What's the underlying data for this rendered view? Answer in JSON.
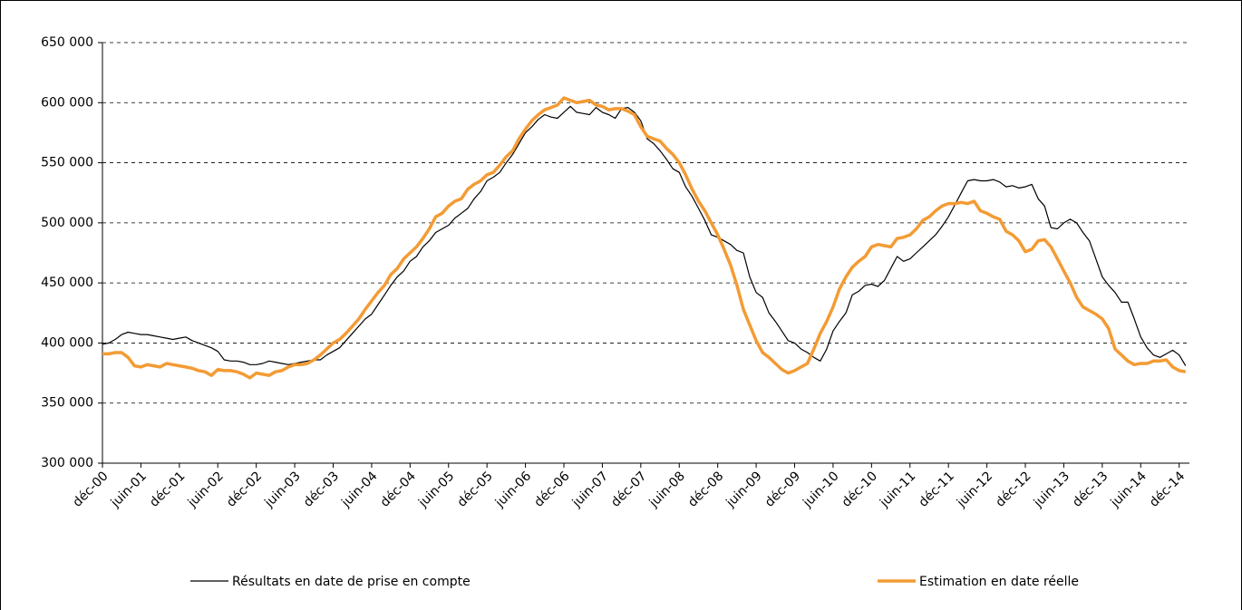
{
  "chart_data": {
    "type": "line",
    "categories": [
      "déc-00",
      null,
      null,
      null,
      null,
      null,
      "juin-01",
      null,
      null,
      null,
      null,
      null,
      "déc-01",
      null,
      null,
      null,
      null,
      null,
      "juin-02",
      null,
      null,
      null,
      null,
      null,
      "déc-02",
      null,
      null,
      null,
      null,
      null,
      "juin-03",
      null,
      null,
      null,
      null,
      null,
      "déc-03",
      null,
      null,
      null,
      null,
      null,
      "juin-04",
      null,
      null,
      null,
      null,
      null,
      "déc-04",
      null,
      null,
      null,
      null,
      null,
      "juin-05",
      null,
      null,
      null,
      null,
      null,
      "déc-05",
      null,
      null,
      null,
      null,
      null,
      "juin-06",
      null,
      null,
      null,
      null,
      null,
      "déc-06",
      null,
      null,
      null,
      null,
      null,
      "juin-07",
      null,
      null,
      null,
      null,
      null,
      "déc-07",
      null,
      null,
      null,
      null,
      null,
      "juin-08",
      null,
      null,
      null,
      null,
      null,
      "déc-08",
      null,
      null,
      null,
      null,
      null,
      "juin-09",
      null,
      null,
      null,
      null,
      null,
      "déc-09",
      null,
      null,
      null,
      null,
      null,
      "juin-10",
      null,
      null,
      null,
      null,
      null,
      "déc-10",
      null,
      null,
      null,
      null,
      null,
      "juin-11",
      null,
      null,
      null,
      null,
      null,
      "déc-11",
      null,
      null,
      null,
      null,
      null,
      "juin-12",
      null,
      null,
      null,
      null,
      null,
      "déc-12",
      null,
      null,
      null,
      null,
      null,
      "juin-13",
      null,
      null,
      null,
      null,
      null,
      "déc-13",
      null,
      null,
      null,
      null,
      null,
      "juin-14",
      null,
      null,
      null,
      null,
      null,
      "déc-14",
      null
    ],
    "series": [
      {
        "name": "Résultats en date de prise en compte",
        "color": "#000000",
        "width": 1.2,
        "values": [
          399000,
          400000,
          403000,
          407000,
          409000,
          408000,
          407000,
          407000,
          406000,
          405000,
          404000,
          403000,
          404000,
          405000,
          402000,
          400000,
          398000,
          396000,
          393000,
          386000,
          385000,
          385000,
          384000,
          382000,
          382000,
          383000,
          385000,
          384000,
          383000,
          382000,
          383000,
          384000,
          385000,
          386000,
          386000,
          390000,
          393000,
          396000,
          402000,
          408000,
          414000,
          420000,
          424000,
          432000,
          440000,
          448000,
          455000,
          460000,
          468000,
          472000,
          480000,
          485000,
          492000,
          495000,
          498000,
          504000,
          508000,
          512000,
          520000,
          526000,
          535000,
          538000,
          542000,
          550000,
          557000,
          566000,
          575000,
          580000,
          586000,
          590000,
          588000,
          587000,
          592000,
          597000,
          592000,
          591000,
          590000,
          596000,
          592000,
          590000,
          587000,
          595000,
          596000,
          592000,
          585000,
          570000,
          566000,
          560000,
          553000,
          545000,
          542000,
          530000,
          522000,
          512000,
          502000,
          490000,
          488000,
          485000,
          482000,
          477000,
          475000,
          455000,
          442000,
          438000,
          425000,
          418000,
          410000,
          402000,
          400000,
          395000,
          392000,
          388000,
          385000,
          395000,
          410000,
          418000,
          425000,
          440000,
          443000,
          448000,
          449000,
          447000,
          452000,
          462000,
          472000,
          468000,
          470000,
          475000,
          480000,
          485000,
          490000,
          497000,
          505000,
          515000,
          525000,
          535000,
          536000,
          535000,
          535000,
          536000,
          534000,
          530000,
          531000,
          529000,
          530000,
          532000,
          520000,
          514000,
          496000,
          495000,
          500000,
          503000,
          500000,
          492000,
          485000,
          470000,
          455000,
          448000,
          442000,
          434000,
          434000,
          420000,
          405000,
          396000,
          390000,
          388000,
          391000,
          394000,
          390000,
          381000
        ]
      },
      {
        "name": "Estimation en date réelle",
        "color": "#f39b34",
        "width": 3.5,
        "values": [
          391000,
          391000,
          392000,
          392000,
          388000,
          381000,
          380000,
          382000,
          381000,
          380000,
          383000,
          382000,
          381000,
          380000,
          379000,
          377000,
          376000,
          373000,
          378000,
          377000,
          377000,
          376000,
          374000,
          371000,
          375000,
          374000,
          373000,
          376000,
          377000,
          380000,
          382000,
          382000,
          383000,
          386000,
          390000,
          395000,
          400000,
          403000,
          408000,
          414000,
          420000,
          428000,
          435000,
          442000,
          448000,
          457000,
          462000,
          470000,
          475000,
          480000,
          487000,
          495000,
          505000,
          508000,
          514000,
          518000,
          520000,
          528000,
          532000,
          535000,
          540000,
          542000,
          548000,
          555000,
          560000,
          570000,
          578000,
          585000,
          590000,
          594000,
          596000,
          598000,
          604000,
          602000,
          600000,
          601000,
          602000,
          598000,
          597000,
          594000,
          595000,
          595000,
          593000,
          590000,
          580000,
          572000,
          570000,
          568000,
          562000,
          557000,
          550000,
          540000,
          528000,
          518000,
          510000,
          500000,
          490000,
          478000,
          465000,
          448000,
          428000,
          415000,
          402000,
          392000,
          388000,
          383000,
          378000,
          375000,
          377000,
          380000,
          383000,
          395000,
          408000,
          418000,
          430000,
          445000,
          455000,
          463000,
          468000,
          472000,
          480000,
          482000,
          481000,
          480000,
          487000,
          488000,
          490000,
          495000,
          502000,
          505000,
          510000,
          514000,
          516000,
          516000,
          517000,
          516000,
          518000,
          510000,
          508000,
          505000,
          503000,
          493000,
          490000,
          485000,
          476000,
          478000,
          485000,
          486000,
          480000,
          470000,
          460000,
          450000,
          438000,
          430000,
          427000,
          424000,
          420000,
          412000,
          395000,
          390000,
          385000,
          382000,
          383000,
          383000,
          385000,
          385000,
          386000,
          380000,
          377000,
          376000
        ]
      }
    ],
    "ylim": [
      300000,
      650000
    ],
    "yticks": [
      {
        "value": 300000,
        "label": "300 000"
      },
      {
        "value": 350000,
        "label": "350 000"
      },
      {
        "value": 400000,
        "label": "400 000"
      },
      {
        "value": 450000,
        "label": "450 000"
      },
      {
        "value": 500000,
        "label": "500 000"
      },
      {
        "value": 550000,
        "label": "550 000"
      },
      {
        "value": 600000,
        "label": "600 000"
      },
      {
        "value": 650000,
        "label": "650 000"
      }
    ],
    "grid": true,
    "legend": "bottom"
  }
}
